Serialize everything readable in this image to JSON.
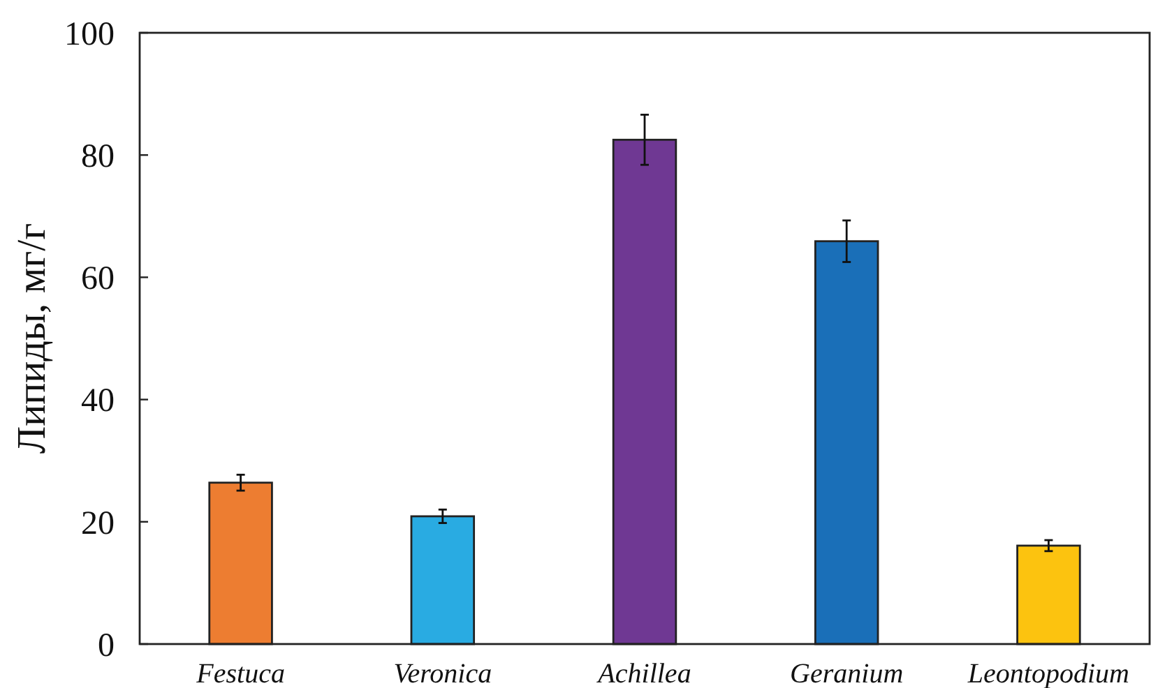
{
  "chart_data": {
    "type": "bar",
    "ylabel": "Липиды, мг/г",
    "categories": [
      "Festuca",
      "Veronica",
      "Achillea",
      "Geranium",
      "Leontopodium"
    ],
    "values": [
      26.4,
      20.9,
      82.5,
      65.9,
      16.1
    ],
    "colors": [
      "#ed7d31",
      "#29abe2",
      "#6f3893",
      "#1a6fb8",
      "#fcc30f"
    ],
    "errors": [
      1.3,
      1.1,
      4.1,
      3.4,
      0.9
    ],
    "ylim": [
      0,
      100
    ],
    "yticks": [
      0,
      20,
      40,
      60,
      80,
      100
    ]
  }
}
